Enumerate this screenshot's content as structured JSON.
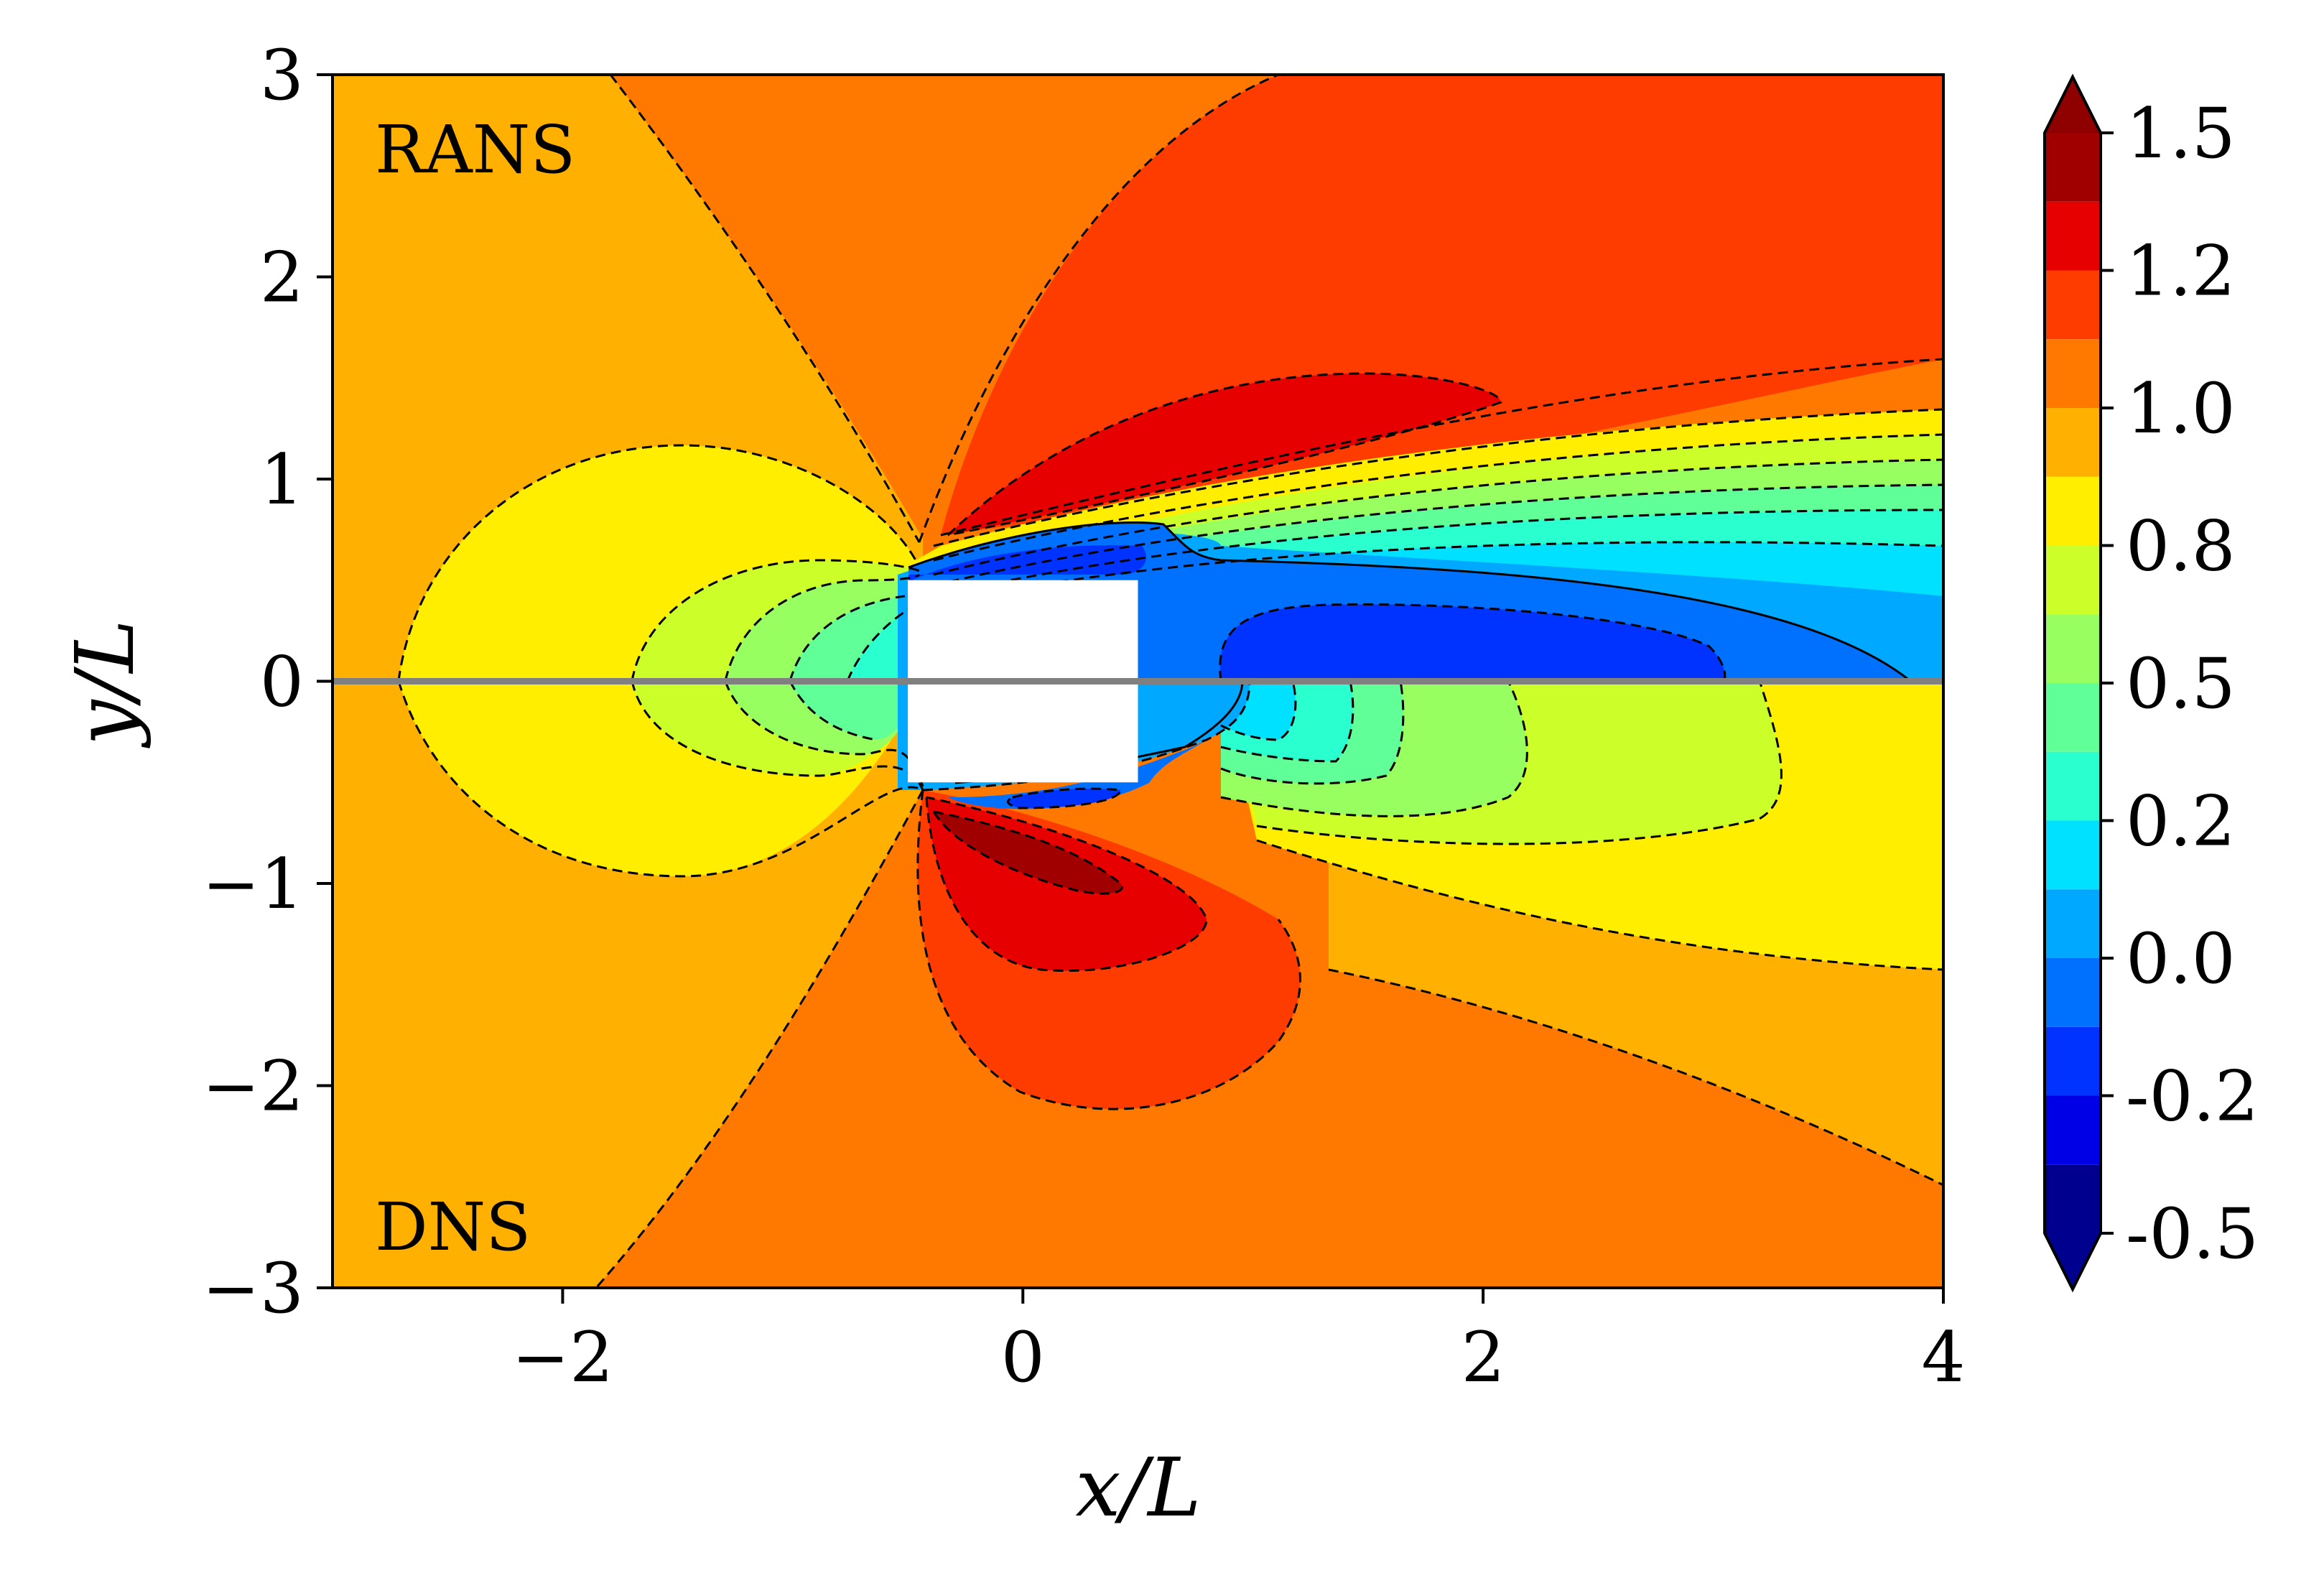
{
  "chart_data": {
    "type": "contour",
    "title": "",
    "xlabel": "x/L",
    "ylabel": "y/L",
    "xlim": [
      -3,
      4
    ],
    "ylim": [
      -3,
      3
    ],
    "x_ticks": [
      "−2",
      "0",
      "2",
      "4"
    ],
    "x_tick_values": [
      -2,
      0,
      2,
      4
    ],
    "y_ticks": [
      "−3",
      "−2",
      "−1",
      "0",
      "1",
      "2",
      "3"
    ],
    "y_tick_values": [
      -3,
      -2,
      -1,
      0,
      1,
      2,
      3
    ],
    "annotations": {
      "upper_half": "RANS",
      "lower_half": "DNS"
    },
    "obstacle": {
      "x_range": [
        -0.5,
        0.5
      ],
      "y_range": [
        -0.5,
        0.5
      ],
      "color": "#ffffff"
    },
    "divider": {
      "y": 0,
      "color": "#808080"
    },
    "colorbar": {
      "ticks": [
        "1.5",
        "1.2",
        "1.0",
        "0.8",
        "0.5",
        "0.2",
        "0.0",
        "-0.2",
        "-0.5"
      ],
      "tick_values": [
        1.5,
        1.25,
        1.0,
        0.75,
        0.5,
        0.25,
        0.0,
        -0.25,
        -0.5
      ],
      "levels": [
        -0.5,
        -0.375,
        -0.25,
        -0.125,
        0.0,
        0.125,
        0.25,
        0.375,
        0.5,
        0.625,
        0.75,
        0.875,
        1.0,
        1.125,
        1.25,
        1.375,
        1.5
      ],
      "colors": [
        "#00008f",
        "#0000e6",
        "#0033ff",
        "#0070ff",
        "#00a8ff",
        "#00e0ff",
        "#2affd0",
        "#60ff98",
        "#98ff60",
        "#ccff2a",
        "#ffee00",
        "#ffb000",
        "#ff7800",
        "#ff3c00",
        "#e60000",
        "#a00000"
      ],
      "extend": "both",
      "under_color": "#00008f",
      "over_color": "#8f0000"
    }
  }
}
